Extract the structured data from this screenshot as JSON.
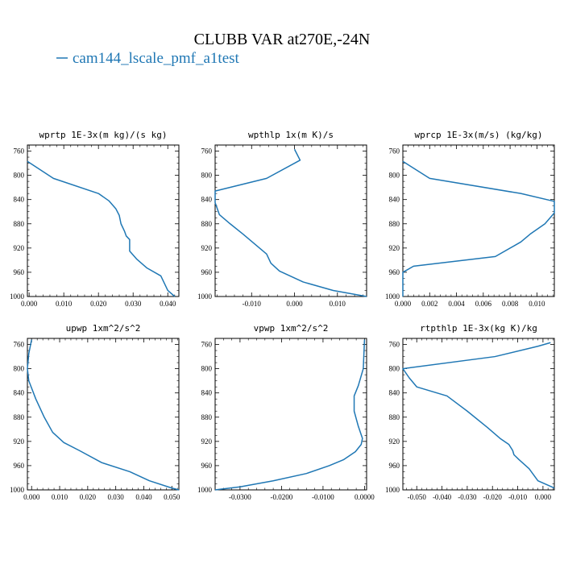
{
  "figure": {
    "title": "CLUBB VAR at270E,-24N",
    "legend_label": "cam144_lscale_pmf_a1test",
    "line_color": "#1f77b4"
  },
  "chart_data": [
    {
      "type": "line",
      "title": "wprtp  1E-3x(m kg)/(s kg)",
      "xlim": [
        -0.0005,
        0.0432
      ],
      "ylim": [
        750,
        1000
      ],
      "y_inverted": true,
      "xticks": [
        0,
        0.01,
        0.02,
        0.03,
        0.04
      ],
      "xticklabels": [
        "0.000",
        "0.010",
        "0.020",
        "0.030",
        "0.040"
      ],
      "yticks": [
        760,
        800,
        840,
        880,
        920,
        960,
        1000
      ],
      "series": [
        {
          "x": [
            -0.0005,
            0.007,
            0.02,
            0.023,
            0.025,
            0.026,
            0.0265,
            0.0275,
            0.028,
            0.029,
            0.029,
            0.031,
            0.034,
            0.038,
            0.04,
            0.042
          ],
          "y": [
            777,
            805,
            830,
            842,
            855,
            866,
            880,
            892,
            900,
            906,
            925,
            938,
            953,
            966,
            990,
            1000
          ]
        }
      ]
    },
    {
      "type": "line",
      "title": "wpthlp  1x(m K)/s",
      "xlim": [
        -0.0185,
        0.0168
      ],
      "ylim": [
        750,
        1000
      ],
      "y_inverted": true,
      "xticks": [
        -0.01,
        0,
        0.01
      ],
      "xticklabels": [
        "-0.010",
        "0.000",
        "0.010"
      ],
      "yticks": [
        760,
        800,
        840,
        880,
        920,
        960,
        1000
      ],
      "series": [
        {
          "x": [
            0.0,
            0.0013,
            -0.0065,
            -0.0185,
            -0.0185,
            -0.0175,
            -0.015,
            -0.012,
            -0.009,
            -0.0065,
            -0.0055,
            -0.0035,
            0.002,
            0.009,
            0.0168
          ],
          "y": [
            757,
            775,
            805,
            826,
            845,
            865,
            880,
            897,
            915,
            930,
            945,
            958,
            976,
            990,
            1000
          ]
        }
      ]
    },
    {
      "type": "line",
      "title": "wprcp  1E-3x(m/s) (kg/kg)",
      "xlim": [
        0,
        0.0113
      ],
      "ylim": [
        750,
        1000
      ],
      "y_inverted": true,
      "xticks": [
        0,
        0.002,
        0.004,
        0.006,
        0.008,
        0.01
      ],
      "xticklabels": [
        "0.000",
        "0.002",
        "0.004",
        "0.006",
        "0.008",
        "0.010"
      ],
      "yticks": [
        760,
        800,
        840,
        880,
        920,
        960,
        1000
      ],
      "series": [
        {
          "x": [
            0.0,
            0.002,
            0.0088,
            0.0113,
            0.0113,
            0.0106,
            0.0095,
            0.0088,
            0.0069,
            0.0008,
            0.0,
            0.0
          ],
          "y": [
            777,
            805,
            830,
            843,
            862,
            880,
            897,
            910,
            934,
            950,
            960,
            1000
          ]
        }
      ]
    },
    {
      "type": "line",
      "title": "upwp  1xm^2/s^2",
      "xlim": [
        -0.0015,
        0.0525
      ],
      "ylim": [
        750,
        1000
      ],
      "y_inverted": true,
      "xticks": [
        0,
        0.01,
        0.02,
        0.03,
        0.04,
        0.05
      ],
      "xticklabels": [
        "0.000",
        "0.010",
        "0.020",
        "0.030",
        "0.040",
        "0.050"
      ],
      "yticks": [
        760,
        800,
        840,
        880,
        920,
        960,
        1000
      ],
      "series": [
        {
          "x": [
            0.0,
            -0.001,
            -0.0015,
            -0.001,
            0.0015,
            0.0045,
            0.0075,
            0.0115,
            0.017,
            0.025,
            0.035,
            0.042,
            0.05,
            0.0525
          ],
          "y": [
            752,
            775,
            800,
            820,
            850,
            880,
            905,
            922,
            935,
            955,
            970,
            985,
            997,
            1000
          ]
        }
      ]
    },
    {
      "type": "line",
      "title": "vpwp  1xm^2/s^2",
      "xlim": [
        -0.036,
        0.0005
      ],
      "ylim": [
        750,
        1000
      ],
      "y_inverted": true,
      "xticks": [
        -0.03,
        -0.02,
        -0.01,
        0
      ],
      "xticklabels": [
        "-0.0300",
        "-0.0200",
        "-0.0100",
        "0.0000"
      ],
      "yticks": [
        760,
        800,
        840,
        880,
        920,
        960,
        1000
      ],
      "series": [
        {
          "x": [
            0.0,
            -0.0003,
            -0.0015,
            -0.0025,
            -0.0025,
            -0.0015,
            -0.0005,
            -0.0008,
            -0.0022,
            -0.005,
            -0.0085,
            -0.014,
            -0.022,
            -0.03,
            -0.036
          ],
          "y": [
            752,
            800,
            828,
            845,
            870,
            895,
            915,
            925,
            937,
            950,
            960,
            973,
            985,
            995,
            1000
          ]
        }
      ]
    },
    {
      "type": "line",
      "title": "rtpthlp  1E-3x(kg K)/kg",
      "xlim": [
        -0.0555,
        0.0045
      ],
      "ylim": [
        750,
        1000
      ],
      "y_inverted": true,
      "xticks": [
        -0.05,
        -0.04,
        -0.03,
        -0.02,
        -0.01,
        0
      ],
      "xticklabels": [
        "-0.050",
        "-0.040",
        "-0.030",
        "-0.020",
        "-0.010",
        "0.000"
      ],
      "yticks": [
        760,
        800,
        840,
        880,
        920,
        960,
        1000
      ],
      "series": [
        {
          "x": [
            0.003,
            -0.002,
            -0.019,
            -0.0555,
            -0.053,
            -0.05,
            -0.038,
            -0.03,
            -0.022,
            -0.017,
            -0.0135,
            -0.012,
            -0.0115,
            -0.0095,
            -0.0055,
            -0.002,
            0.0045
          ],
          "y": [
            757,
            763,
            780,
            800,
            815,
            830,
            845,
            870,
            897,
            915,
            925,
            935,
            942,
            950,
            965,
            985,
            997
          ]
        }
      ]
    }
  ]
}
